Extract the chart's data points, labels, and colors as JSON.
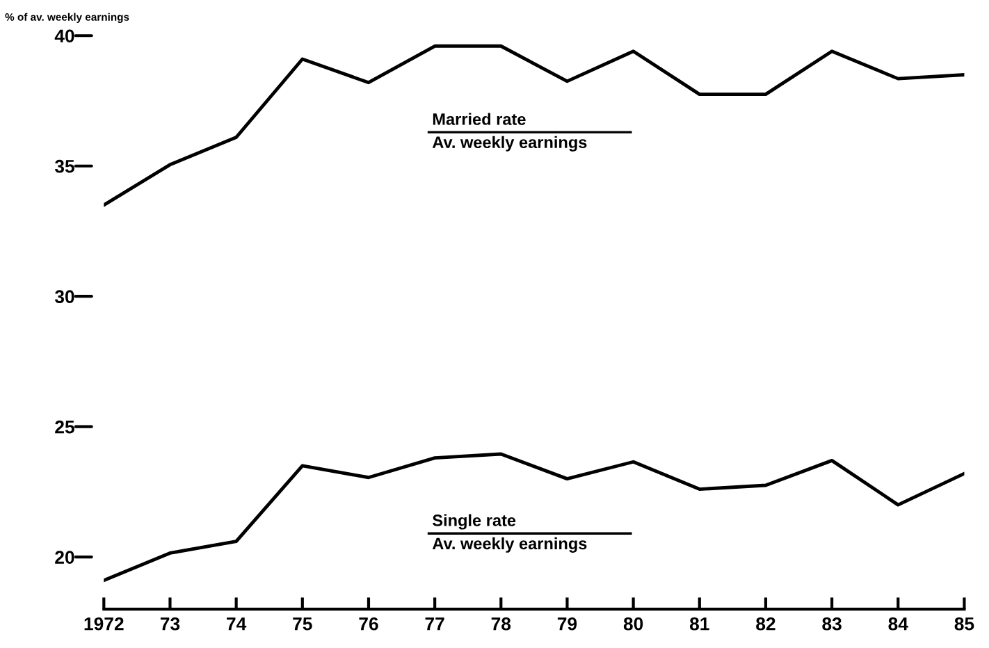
{
  "chart_data": {
    "type": "line",
    "ylabel": "% of av. weekly earnings",
    "x": [
      1972,
      1973,
      1974,
      1975,
      1976,
      1977,
      1978,
      1979,
      1980,
      1981,
      1982,
      1983,
      1984,
      1985
    ],
    "series": [
      {
        "name": "Married rate\nAv. weekly earnings",
        "color": "#000000",
        "values": [
          33.5,
          35.05,
          36.1,
          39.1,
          38.2,
          39.6,
          39.6,
          38.25,
          39.4,
          37.75,
          37.75,
          39.4,
          38.35,
          38.5
        ]
      },
      {
        "name": "Single rate\nAv. weekly earnings",
        "color": "#000000",
        "values": [
          19.1,
          20.15,
          20.6,
          23.5,
          23.05,
          23.8,
          23.95,
          23.0,
          23.65,
          22.6,
          22.75,
          23.7,
          22.0,
          23.2
        ]
      }
    ],
    "xlim": [
      1972,
      1985
    ],
    "ylim": [
      18,
      40
    ],
    "xticks": [
      {
        "value": 1972,
        "label": "1972"
      },
      {
        "value": 1973,
        "label": "73"
      },
      {
        "value": 1974,
        "label": "74"
      },
      {
        "value": 1975,
        "label": "75"
      },
      {
        "value": 1976,
        "label": "76"
      },
      {
        "value": 1977,
        "label": "77"
      },
      {
        "value": 1978,
        "label": "78"
      },
      {
        "value": 1979,
        "label": "79"
      },
      {
        "value": 1980,
        "label": "80"
      },
      {
        "value": 1981,
        "label": "81"
      },
      {
        "value": 1982,
        "label": "82"
      },
      {
        "value": 1983,
        "label": "83"
      },
      {
        "value": 1984,
        "label": "84"
      },
      {
        "value": 1985,
        "label": "85"
      }
    ],
    "yticks": [
      20,
      25,
      30,
      35,
      40
    ],
    "grid": false,
    "legend": false,
    "marker": "none",
    "line_style": "solid"
  }
}
